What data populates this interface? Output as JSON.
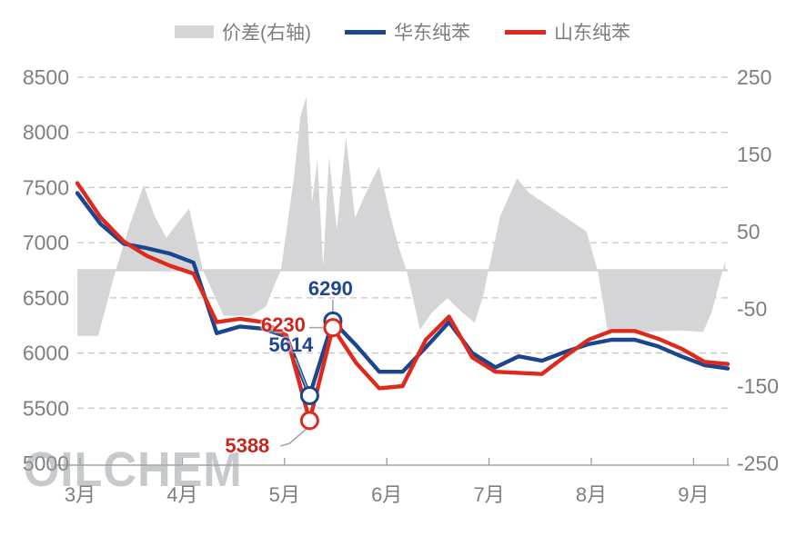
{
  "legend": [
    {
      "label": "价差(右轴)",
      "type": "area",
      "color": "#d5d5d7"
    },
    {
      "label": "华东纯苯",
      "type": "line",
      "color": "#1a458f"
    },
    {
      "label": "山东纯苯",
      "type": "line",
      "color": "#de2a1d"
    }
  ],
  "watermark": "OILCHEM",
  "colors": {
    "east_china_line": "#1a458f",
    "shandong_line": "#de2a1d",
    "spread_area": "#d5d5d7",
    "gridline": "#c3c3c3",
    "axis_text": "#7f7f7f",
    "axis_line": "#a3a3a3",
    "annotation_blue": "#1f4693",
    "annotation_red": "#c7271c",
    "leader_line": "#a6a6a6",
    "marker_fill": "#ffffff"
  },
  "chart_data": {
    "type": "combo",
    "title": "",
    "x_axis": {
      "tick_labels": [
        "3月",
        "4月",
        "5月",
        "6月",
        "7月",
        "8月",
        "9月"
      ]
    },
    "left_axis": {
      "tick_labels": [
        "8500",
        "8000",
        "7500",
        "7000",
        "6500",
        "6000",
        "5500",
        "5000"
      ],
      "range": [
        5000,
        8500
      ]
    },
    "right_axis": {
      "tick_labels": [
        "250",
        "150",
        "50",
        "-50",
        "-150",
        "-250"
      ],
      "range": [
        -250,
        250
      ]
    },
    "grid": "horizontal-dashed",
    "legend_position": "top-center",
    "dates": [
      "3/3",
      "3/10",
      "3/17",
      "3/24",
      "3/31",
      "4/7",
      "4/14",
      "4/21",
      "4/28",
      "5/5",
      "5/9",
      "5/16",
      "5/23",
      "5/30",
      "6/6",
      "6/13",
      "6/20",
      "6/27",
      "7/4",
      "7/11",
      "7/18",
      "7/25",
      "8/1",
      "8/8",
      "8/15",
      "8/22",
      "8/29",
      "9/5",
      "9/12"
    ],
    "series": [
      {
        "name": "华东纯苯",
        "type": "line",
        "axis": "left",
        "values": [
          7450,
          7170,
          6990,
          6950,
          6900,
          6820,
          6180,
          6240,
          6220,
          6150,
          5614,
          6290,
          6070,
          5830,
          5830,
          6050,
          6280,
          6000,
          5870,
          5970,
          5930,
          6010,
          6080,
          6120,
          6120,
          6060,
          5970,
          5890,
          5860
        ]
      },
      {
        "name": "山东纯苯",
        "type": "line",
        "axis": "left",
        "values": [
          7540,
          7230,
          7010,
          6880,
          6790,
          6720,
          6280,
          6310,
          6280,
          6160,
          5388,
          6230,
          5910,
          5680,
          5700,
          6120,
          6330,
          5960,
          5830,
          5820,
          5810,
          5970,
          6120,
          6200,
          6200,
          6130,
          6040,
          5920,
          5900
        ]
      },
      {
        "name": "价差(右轴)",
        "type": "area",
        "axis": "right",
        "points": [
          {
            "x": 0.0,
            "v": -85
          },
          {
            "x": 0.032,
            "v": -85
          },
          {
            "x": 0.059,
            "v": 0
          },
          {
            "x": 0.081,
            "v": 60
          },
          {
            "x": 0.102,
            "v": 110
          },
          {
            "x": 0.119,
            "v": 70
          },
          {
            "x": 0.137,
            "v": 42
          },
          {
            "x": 0.155,
            "v": 62
          },
          {
            "x": 0.172,
            "v": 80
          },
          {
            "x": 0.193,
            "v": 0
          },
          {
            "x": 0.225,
            "v": -59
          },
          {
            "x": 0.267,
            "v": -59
          },
          {
            "x": 0.29,
            "v": -47
          },
          {
            "x": 0.305,
            "v": -15
          },
          {
            "x": 0.313,
            "v": 0
          },
          {
            "x": 0.323,
            "v": 60
          },
          {
            "x": 0.333,
            "v": 120
          },
          {
            "x": 0.343,
            "v": 199
          },
          {
            "x": 0.352,
            "v": 225
          },
          {
            "x": 0.361,
            "v": 88
          },
          {
            "x": 0.369,
            "v": 143
          },
          {
            "x": 0.378,
            "v": 5
          },
          {
            "x": 0.387,
            "v": 147
          },
          {
            "x": 0.399,
            "v": 53
          },
          {
            "x": 0.413,
            "v": 173
          },
          {
            "x": 0.427,
            "v": 68
          },
          {
            "x": 0.441,
            "v": 95
          },
          {
            "x": 0.455,
            "v": 120
          },
          {
            "x": 0.464,
            "v": 134
          },
          {
            "x": 0.48,
            "v": 75
          },
          {
            "x": 0.494,
            "v": 30
          },
          {
            "x": 0.506,
            "v": 0
          },
          {
            "x": 0.517,
            "v": -40
          },
          {
            "x": 0.527,
            "v": -77
          },
          {
            "x": 0.545,
            "v": -55
          },
          {
            "x": 0.569,
            "v": -36
          },
          {
            "x": 0.592,
            "v": -55
          },
          {
            "x": 0.611,
            "v": -68
          },
          {
            "x": 0.625,
            "v": -30
          },
          {
            "x": 0.632,
            "v": 0
          },
          {
            "x": 0.65,
            "v": 70
          },
          {
            "x": 0.676,
            "v": 119
          },
          {
            "x": 0.695,
            "v": 100
          },
          {
            "x": 0.72,
            "v": 86
          },
          {
            "x": 0.748,
            "v": 70
          },
          {
            "x": 0.783,
            "v": 50
          },
          {
            "x": 0.793,
            "v": 20
          },
          {
            "x": 0.8,
            "v": 0
          },
          {
            "x": 0.808,
            "v": -40
          },
          {
            "x": 0.815,
            "v": -78
          },
          {
            "x": 0.846,
            "v": -80
          },
          {
            "x": 0.888,
            "v": -79
          },
          {
            "x": 0.93,
            "v": -78
          },
          {
            "x": 0.962,
            "v": -80
          },
          {
            "x": 0.975,
            "v": -55
          },
          {
            "x": 0.986,
            "v": -20
          },
          {
            "x": 0.996,
            "v": 12
          }
        ]
      }
    ],
    "annotations": [
      {
        "label": "6290",
        "series": "华东纯苯",
        "date": "5/16",
        "value": 6290,
        "color": "blue"
      },
      {
        "label": "6230",
        "series": "山东纯苯",
        "date": "5/16",
        "value": 6230,
        "color": "red"
      },
      {
        "label": "5614",
        "series": "华东纯苯",
        "date": "5/9",
        "value": 5614,
        "color": "blue"
      },
      {
        "label": "5388",
        "series": "山东纯苯",
        "date": "5/9",
        "value": 5388,
        "color": "red"
      }
    ]
  }
}
